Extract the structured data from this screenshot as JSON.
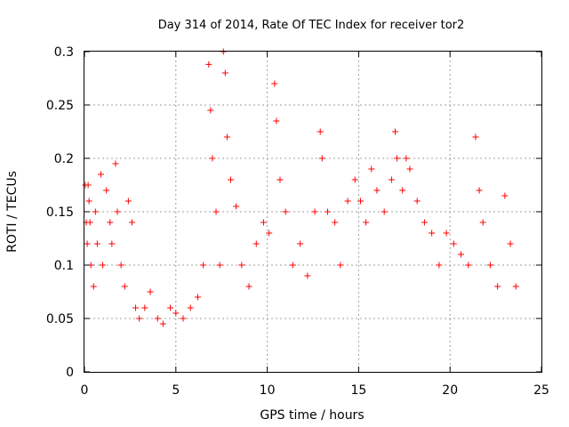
{
  "chart_data": {
    "type": "scatter",
    "title": "Day 314 of 2014, Rate Of TEC Index for receiver tor2",
    "xlabel": "GPS time / hours",
    "ylabel": "ROTI / TECUs",
    "xlim": [
      0,
      25
    ],
    "ylim": [
      0,
      0.3
    ],
    "x_ticks": [
      "0",
      "5",
      "10",
      "15",
      "20",
      "25"
    ],
    "y_ticks": [
      "0",
      "0.05",
      "0.1",
      "0.15",
      "0.2",
      "0.25",
      "0.3"
    ],
    "grid": true,
    "legend": "none",
    "marker": "plus",
    "color": "#ff0000",
    "series": [
      {
        "x": [
          0.05,
          0.1,
          0.15,
          0.2,
          0.25,
          0.3,
          0.35,
          0.5,
          0.6,
          0.7,
          0.9,
          1.0,
          1.2,
          1.4,
          1.5,
          1.7,
          1.8,
          2.0,
          2.2,
          2.4,
          2.6,
          2.8,
          3.0,
          3.3,
          3.6,
          4.0,
          4.3,
          4.7,
          5.0,
          5.4,
          5.8,
          6.2,
          6.5,
          6.8,
          6.9,
          7.0,
          7.2,
          7.4,
          7.6,
          7.7,
          7.8,
          8.0,
          8.3,
          8.6,
          9.0,
          9.4,
          9.8,
          10.1,
          10.4,
          10.5,
          10.7,
          11.0,
          11.4,
          11.8,
          12.2,
          12.6,
          12.9,
          13.0,
          13.3,
          13.7,
          14.0,
          14.4,
          14.8,
          15.1,
          15.4,
          15.7,
          16.0,
          16.4,
          16.8,
          17.0,
          17.1,
          17.4,
          17.6,
          17.8,
          18.2,
          18.6,
          19.0,
          19.4,
          19.8,
          20.2,
          20.6,
          21.0,
          21.4,
          21.6,
          21.8,
          22.2,
          22.6,
          23.0,
          23.3,
          23.6
        ],
        "y": [
          0.175,
          0.14,
          0.12,
          0.175,
          0.16,
          0.14,
          0.1,
          0.08,
          0.15,
          0.12,
          0.185,
          0.1,
          0.17,
          0.14,
          0.12,
          0.195,
          0.15,
          0.1,
          0.08,
          0.16,
          0.14,
          0.06,
          0.05,
          0.06,
          0.075,
          0.05,
          0.045,
          0.06,
          0.055,
          0.05,
          0.06,
          0.07,
          0.1,
          0.288,
          0.245,
          0.2,
          0.15,
          0.1,
          0.3,
          0.28,
          0.22,
          0.18,
          0.155,
          0.1,
          0.08,
          0.12,
          0.14,
          0.13,
          0.27,
          0.235,
          0.18,
          0.15,
          0.1,
          0.12,
          0.09,
          0.15,
          0.225,
          0.2,
          0.15,
          0.14,
          0.1,
          0.16,
          0.18,
          0.16,
          0.14,
          0.19,
          0.17,
          0.15,
          0.18,
          0.225,
          0.2,
          0.17,
          0.2,
          0.19,
          0.16,
          0.14,
          0.13,
          0.1,
          0.13,
          0.12,
          0.11,
          0.1,
          0.22,
          0.17,
          0.14,
          0.1,
          0.08,
          0.165,
          0.12,
          0.08
        ]
      }
    ]
  }
}
